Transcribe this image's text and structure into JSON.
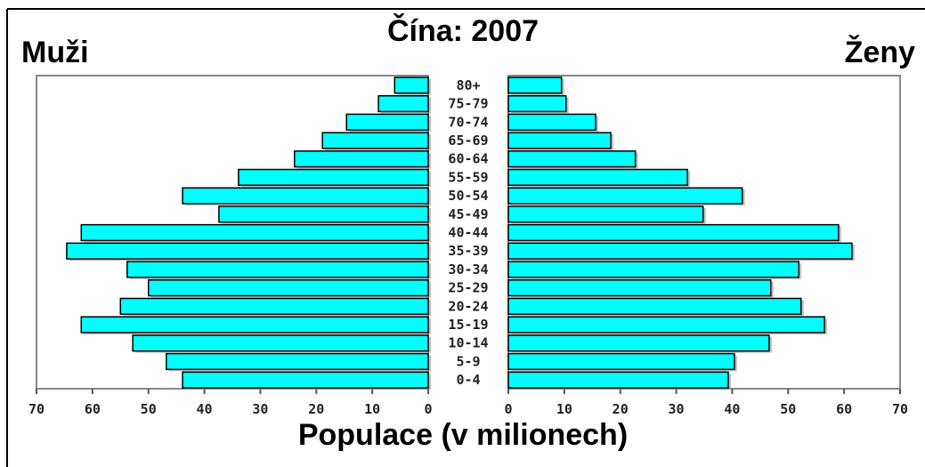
{
  "chart_data": {
    "type": "pyramid",
    "title": "Čína: 2007",
    "x_label": "Populace (v milionech)",
    "categories": [
      "80+",
      "75-79",
      "70-74",
      "65-69",
      "60-64",
      "55-59",
      "50-54",
      "45-49",
      "40-44",
      "35-39",
      "30-34",
      "25-29",
      "20-24",
      "15-19",
      "10-14",
      "5-9",
      "0-4"
    ],
    "series": [
      {
        "name": "Muži",
        "color": "#00ffff",
        "values": [
          6.0,
          8.9,
          14.6,
          18.9,
          23.9,
          33.9,
          43.9,
          37.4,
          62.0,
          64.6,
          53.8,
          50.0,
          55.0,
          62.0,
          52.8,
          46.8,
          43.9
        ]
      },
      {
        "name": "Ženy",
        "color": "#00ffff",
        "values": [
          9.5,
          10.3,
          15.6,
          18.3,
          22.7,
          32.0,
          41.8,
          34.8,
          59.0,
          61.4,
          51.9,
          46.9,
          52.3,
          56.5,
          46.6,
          40.4,
          39.3
        ]
      }
    ],
    "xlim": [
      0,
      70
    ],
    "xticks": [
      0,
      10,
      20,
      30,
      40,
      50,
      60,
      70
    ]
  }
}
